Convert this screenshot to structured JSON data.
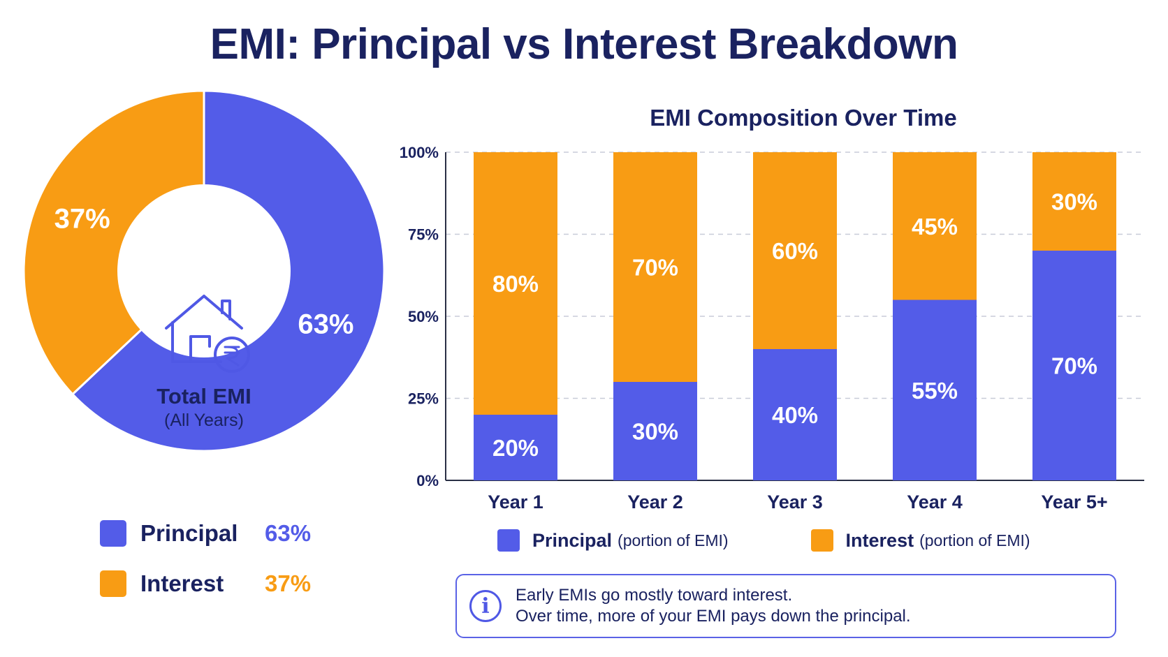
{
  "title": "EMI: Principal vs Interest Breakdown",
  "colors": {
    "principal": "#535ce8",
    "interest": "#f89c14",
    "title": "#1a2260"
  },
  "donut": {
    "center_icon": "house-rupee-icon",
    "center_label": "Total EMI",
    "center_sublabel": "(All Years)",
    "slices": [
      {
        "name": "Principal",
        "value": 63,
        "label": "63%"
      },
      {
        "name": "Interest",
        "value": 37,
        "label": "37%"
      }
    ]
  },
  "legend_left": [
    {
      "label": "Principal",
      "value": "63%"
    },
    {
      "label": "Interest",
      "value": "37%"
    }
  ],
  "chart_data": [
    {
      "type": "pie",
      "title": "",
      "categories": [
        "Principal",
        "Interest"
      ],
      "values": [
        63,
        37
      ],
      "labels": [
        "63%",
        "37%"
      ]
    },
    {
      "type": "bar",
      "stacked": true,
      "title": "EMI Composition Over Time",
      "xlabel": "",
      "ylabel": "",
      "categories": [
        "Year 1",
        "Year 2",
        "Year 3",
        "Year 4",
        "Year 5+"
      ],
      "series": [
        {
          "name": "Principal",
          "values": [
            20,
            30,
            40,
            55,
            70
          ],
          "labels": [
            "20%",
            "30%",
            "40%",
            "55%",
            "70%"
          ]
        },
        {
          "name": "Interest",
          "values": [
            80,
            70,
            60,
            45,
            30
          ],
          "labels": [
            "80%",
            "70%",
            "60%",
            "45%",
            "30%"
          ]
        }
      ],
      "ylim": [
        0,
        100
      ],
      "yticks": [
        "0%",
        "25%",
        "50%",
        "75%",
        "100%"
      ],
      "grid": true,
      "legend_position": "bottom"
    }
  ],
  "bar_legend": [
    {
      "name": "Principal",
      "note": "(portion of EMI)"
    },
    {
      "name": "Interest",
      "note": "(portion of EMI)"
    }
  ],
  "info": {
    "icon": "info-icon",
    "line1": "Early EMIs go mostly toward interest.",
    "line2": "Over time, more of your EMI pays down the principal."
  }
}
